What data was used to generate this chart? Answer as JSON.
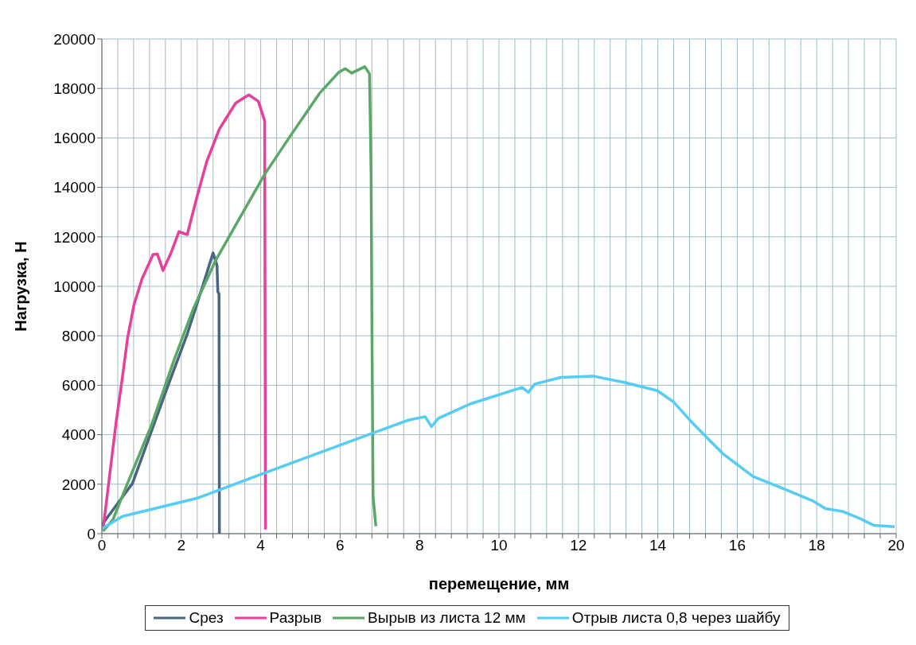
{
  "chart_data": {
    "type": "line",
    "xlabel": "перемещение, мм",
    "ylabel": "Нагрузка, Н",
    "xlim": [
      0,
      20
    ],
    "xticks": [
      0,
      {
        "value": 0.4,
        "label": null
      },
      {
        "value": 0.8,
        "label": null
      },
      {
        "value": 1.2,
        "label": null
      },
      {
        "value": 1.6,
        "label": null
      },
      2,
      {
        "value": 2.4,
        "label": null
      },
      {
        "value": 2.8,
        "label": null
      },
      {
        "value": 3.2,
        "label": null
      },
      {
        "value": 3.6,
        "label": null
      },
      4,
      {
        "value": 4.4,
        "label": null
      },
      {
        "value": 4.8,
        "label": null
      },
      {
        "value": 5.2,
        "label": null
      },
      {
        "value": 5.6,
        "label": null
      },
      6,
      {
        "value": 6.4,
        "label": null
      },
      {
        "value": 6.8,
        "label": null
      },
      {
        "value": 7.2,
        "label": null
      },
      {
        "value": 7.6,
        "label": null
      },
      8,
      {
        "value": 8.4,
        "label": null
      },
      {
        "value": 8.8,
        "label": null
      },
      {
        "value": 9.2,
        "label": null
      },
      {
        "value": 9.6,
        "label": null
      },
      10,
      {
        "value": 10.4,
        "label": null
      },
      {
        "value": 10.8,
        "label": null
      },
      {
        "value": 11.2,
        "label": null
      },
      {
        "value": 11.6,
        "label": null
      },
      12,
      {
        "value": 12.4,
        "label": null
      },
      {
        "value": 12.8,
        "label": null
      },
      {
        "value": 13.2,
        "label": null
      },
      {
        "value": 13.6,
        "label": null
      },
      14,
      {
        "value": 14.4,
        "label": null
      },
      {
        "value": 14.8,
        "label": null
      },
      {
        "value": 15.2,
        "label": null
      },
      {
        "value": 15.6,
        "label": null
      },
      16,
      {
        "value": 16.4,
        "label": null
      },
      {
        "value": 16.8,
        "label": null
      },
      {
        "value": 17.2,
        "label": null
      },
      {
        "value": 17.6,
        "label": null
      },
      18,
      {
        "value": 18.4,
        "label": null
      },
      {
        "value": 18.8,
        "label": null
      },
      {
        "value": 19.2,
        "label": null
      },
      {
        "value": 19.6,
        "label": null
      },
      20
    ],
    "ylim": [
      0,
      20000
    ],
    "yticks": [
      0,
      2000,
      4000,
      6000,
      8000,
      10000,
      12000,
      14000,
      16000,
      18000,
      20000
    ],
    "grid": true,
    "legend": "bottom",
    "marker": "none",
    "line_style": "solid",
    "series": [
      {
        "name": "Срез",
        "color": "#4a6584",
        "x": [
          0,
          0.04,
          0.77,
          1.66,
          2.15,
          2.47,
          2.8,
          2.9,
          2.92,
          2.95,
          2.96
        ],
        "values": [
          300,
          440,
          2030,
          5960,
          8070,
          9660,
          11350,
          10840,
          9780,
          9700,
          0
        ]
      },
      {
        "name": "Разрыв",
        "color": "#e8409a",
        "x": [
          0.03,
          0.16,
          0.36,
          0.52,
          0.65,
          0.81,
          1.01,
          1.29,
          1.4,
          1.54,
          1.74,
          1.94,
          2.15,
          2.39,
          2.64,
          2.96,
          3.37,
          3.7,
          3.94,
          4.1,
          4.12
        ],
        "values": [
          170,
          1890,
          4530,
          6350,
          7940,
          9260,
          10300,
          11290,
          11300,
          10640,
          11350,
          12210,
          12090,
          13590,
          15040,
          16360,
          17410,
          17740,
          17480,
          16690,
          170
        ]
      },
      {
        "name": "Вырыв из листа 12 мм",
        "color": "#5aa865",
        "x": [
          0.03,
          0.28,
          0.61,
          1.25,
          1.82,
          2.31,
          2.88,
          3.44,
          4.1,
          4.75,
          5.48,
          5.97,
          6.13,
          6.29,
          6.62,
          6.74,
          6.78,
          6.8,
          6.83,
          6.9
        ],
        "values": [
          100,
          570,
          1890,
          4390,
          7030,
          9120,
          11090,
          12670,
          14530,
          16090,
          17800,
          18660,
          18800,
          18620,
          18880,
          18590,
          14530,
          8460,
          1490,
          300
        ]
      },
      {
        "name": "Отрыв листа 0,8 через шайбу",
        "color": "#55ccf5",
        "x": [
          0,
          0.52,
          2.39,
          2.71,
          4.02,
          6.79,
          7.72,
          8.14,
          8.3,
          8.47,
          9.28,
          10.58,
          10.74,
          10.9,
          11.56,
          12.37,
          13.17,
          13.99,
          14.4,
          14.8,
          15.18,
          15.64,
          16.4,
          17.16,
          17.91,
          18.22,
          18.67,
          19.12,
          19.43,
          19.96
        ],
        "values": [
          200,
          700,
          1430,
          1620,
          2410,
          4050,
          4590,
          4730,
          4330,
          4660,
          5250,
          5910,
          5710,
          6050,
          6320,
          6370,
          6110,
          5780,
          5320,
          4600,
          3970,
          3230,
          2310,
          1820,
          1320,
          1010,
          890,
          590,
          340,
          280
        ]
      }
    ]
  }
}
